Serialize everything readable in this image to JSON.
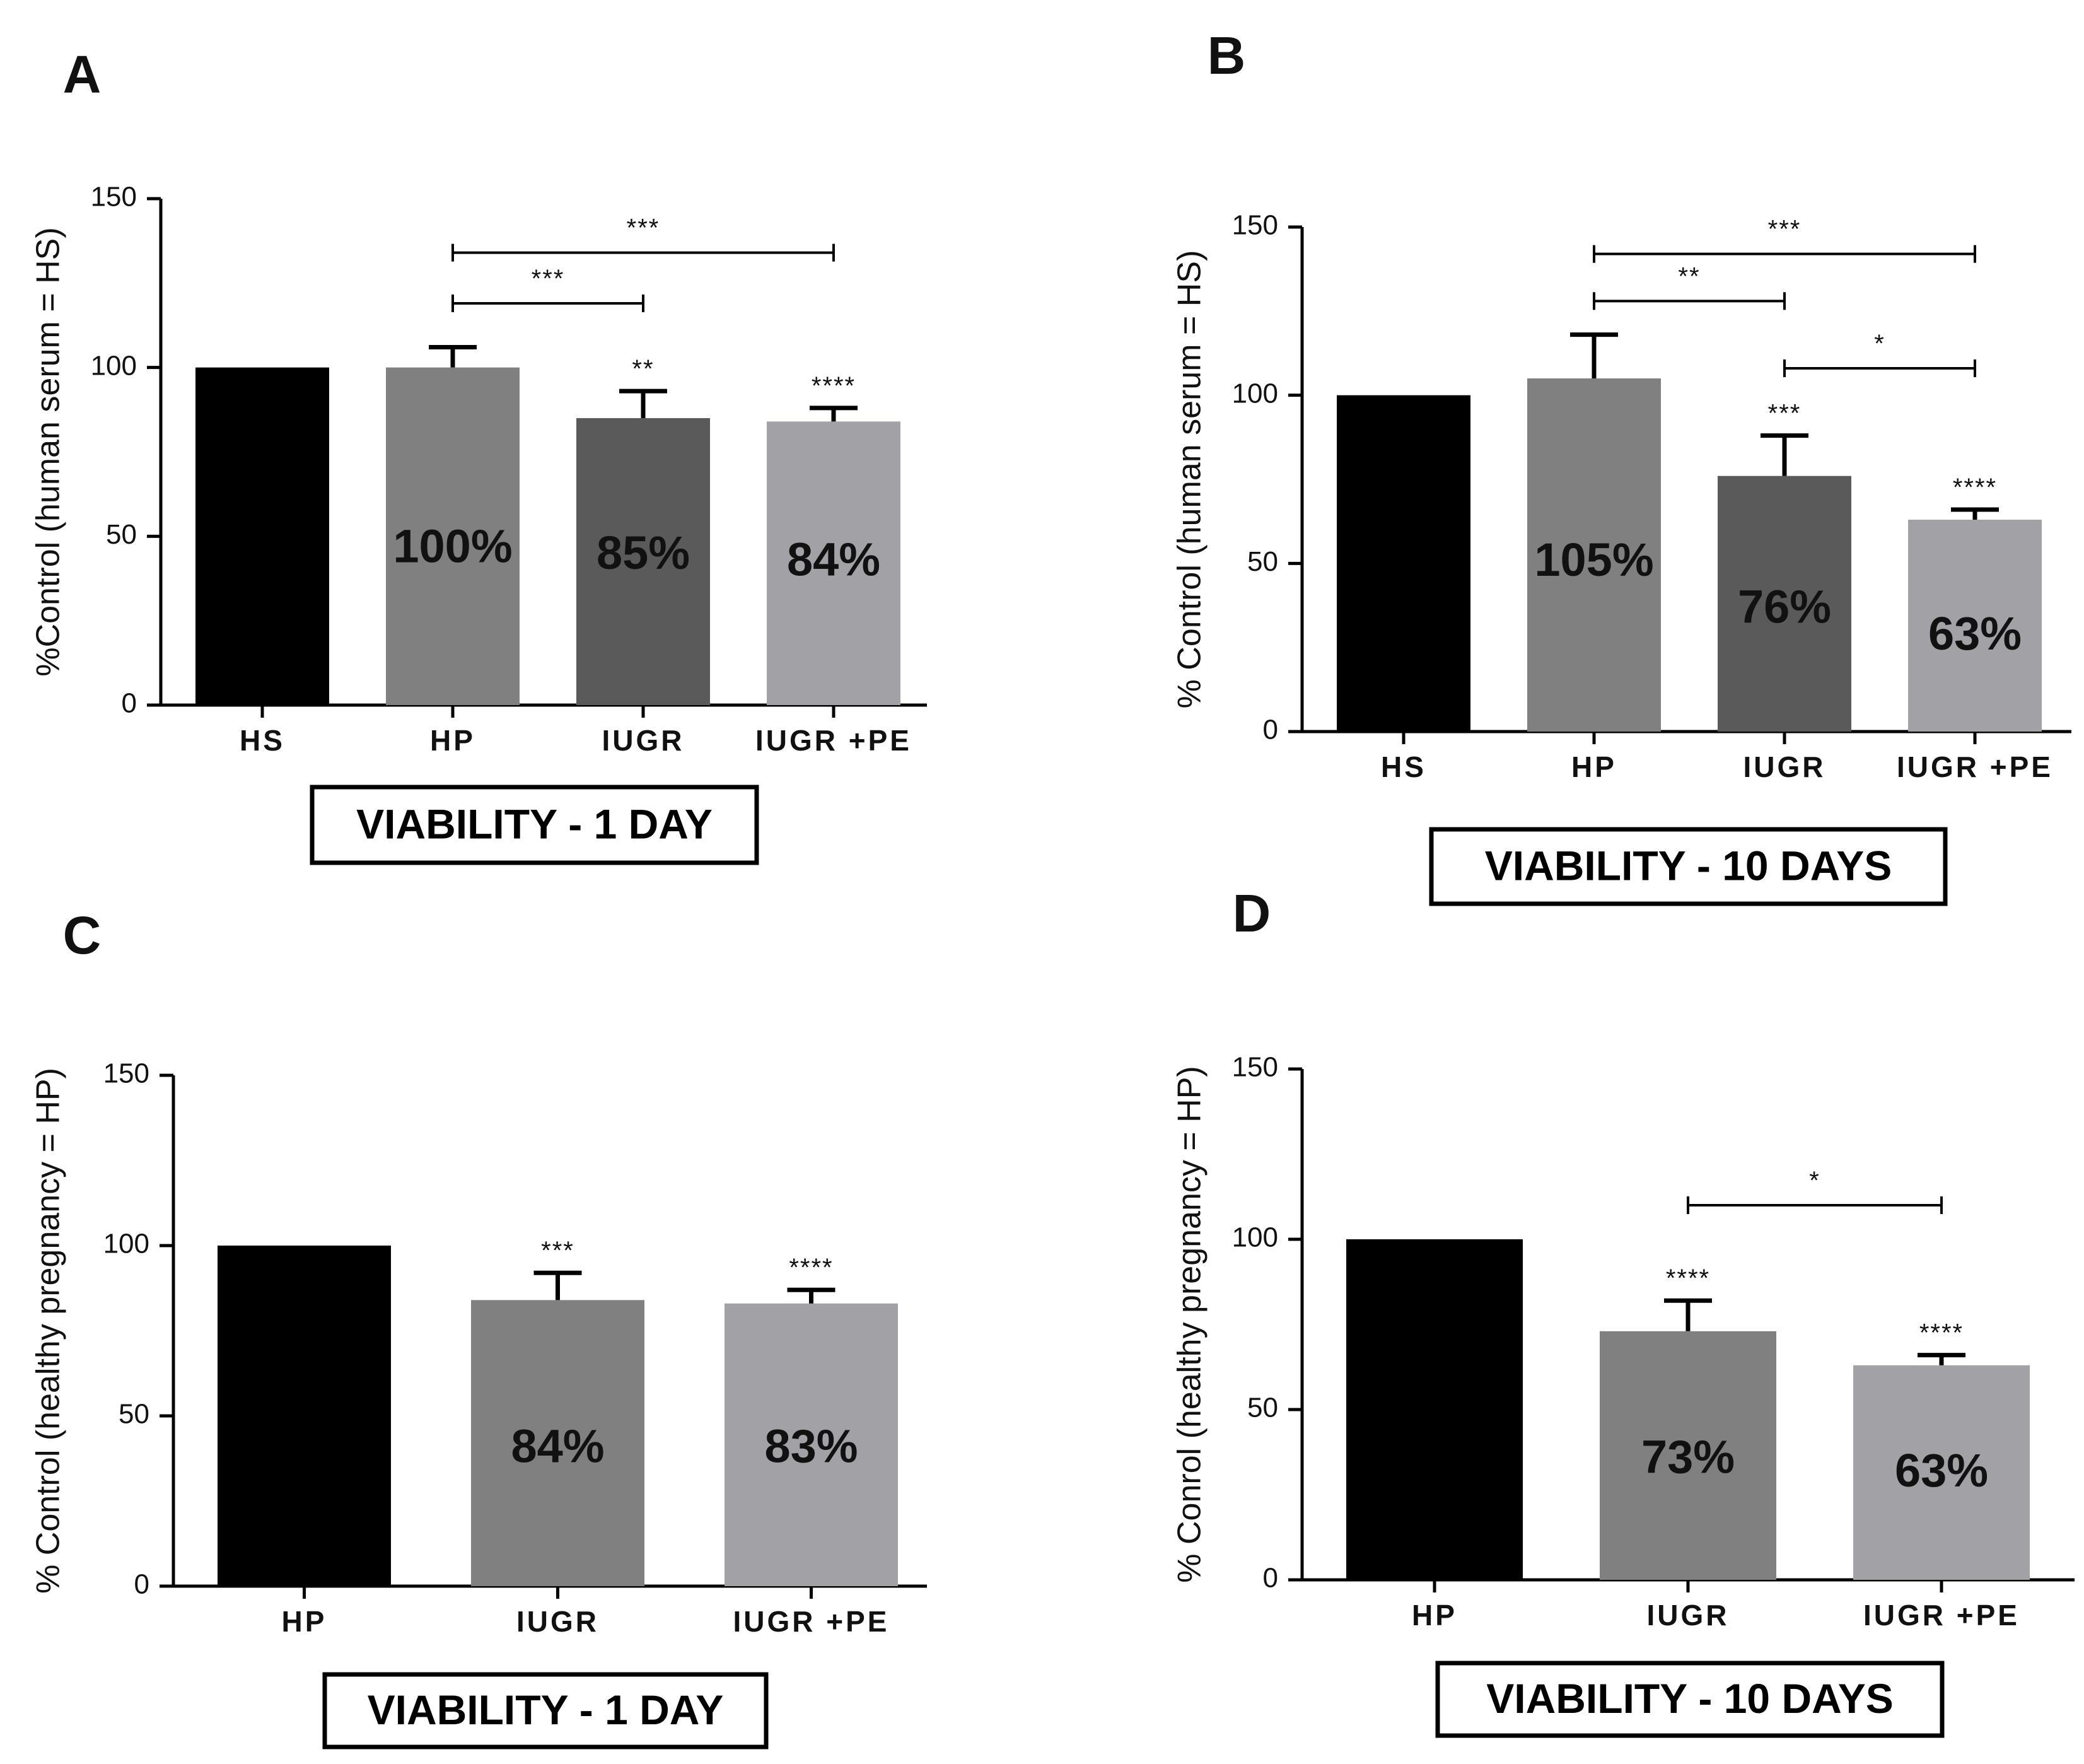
{
  "chart_data": [
    {
      "type": "bar",
      "panel": "A",
      "categories": [
        "HS",
        "HP",
        "IUGR",
        "IUGR +PE"
      ],
      "values": [
        100,
        100,
        85,
        84
      ],
      "errors": [
        0,
        6,
        8,
        4
      ],
      "bar_colors": [
        "#000000",
        "#808080",
        "#5a5a5a",
        "#a2a2a6"
      ],
      "bar_labels": [
        "",
        "100%",
        "85%",
        "84%"
      ],
      "bar_label_values": [
        null,
        46,
        44,
        42
      ],
      "bar_sig": [
        "",
        "",
        "**",
        "****"
      ],
      "ylabel": "%Control (human serum = HS)",
      "ylim": [
        0,
        150
      ],
      "yticks": [
        "0",
        "50",
        "100",
        "150"
      ],
      "title": "VIABILITY - 1 DAY",
      "brackets": [
        {
          "from": 1,
          "to": 3,
          "y": 134,
          "label": "***"
        },
        {
          "from": 1,
          "to": 2,
          "y": 119,
          "label": "***"
        }
      ]
    },
    {
      "type": "bar",
      "panel": "B",
      "categories": [
        "HS",
        "HP",
        "IUGR",
        "IUGR +PE"
      ],
      "values": [
        100,
        105,
        76,
        63
      ],
      "errors": [
        0,
        13,
        12,
        3
      ],
      "bar_colors": [
        "#000000",
        "#808080",
        "#5a5a5a",
        "#a2a2a6"
      ],
      "bar_labels": [
        "",
        "105%",
        "76%",
        "63%"
      ],
      "bar_label_values": [
        null,
        50,
        36,
        28
      ],
      "bar_sig": [
        "",
        "",
        "***",
        "****"
      ],
      "ylabel": "% Control (human serum = HS)",
      "ylim": [
        0,
        150
      ],
      "yticks": [
        "0",
        "50",
        "100",
        "150"
      ],
      "title": "VIABILITY  - 10 DAYS",
      "brackets": [
        {
          "from": 1,
          "to": 3,
          "y": 142,
          "label": "***"
        },
        {
          "from": 1,
          "to": 2,
          "y": 128,
          "label": "**"
        },
        {
          "from": 2,
          "to": 3,
          "y": 108,
          "label": "*"
        }
      ]
    },
    {
      "type": "bar",
      "panel": "C",
      "categories": [
        "HP",
        "IUGR",
        "IUGR +PE"
      ],
      "values": [
        100,
        84,
        83
      ],
      "errors": [
        0,
        8,
        4
      ],
      "bar_colors": [
        "#000000",
        "#808080",
        "#a2a2a6"
      ],
      "bar_labels": [
        "",
        "84%",
        "83%"
      ],
      "bar_label_values": [
        null,
        40,
        40
      ],
      "bar_sig": [
        "",
        "***",
        "****"
      ],
      "ylabel": "% Control (healthy pregnancy = HP)",
      "ylim": [
        0,
        150
      ],
      "yticks": [
        "0",
        "50",
        "100",
        "150"
      ],
      "title": "VIABILITY - 1 DAY",
      "brackets": []
    },
    {
      "type": "bar",
      "panel": "D",
      "categories": [
        "HP",
        "IUGR",
        "IUGR +PE"
      ],
      "values": [
        100,
        73,
        63
      ],
      "errors": [
        0,
        9,
        3
      ],
      "bar_colors": [
        "#000000",
        "#808080",
        "#a2a2a6"
      ],
      "bar_labels": [
        "",
        "73%",
        "63%"
      ],
      "bar_label_values": [
        null,
        35,
        31
      ],
      "bar_sig": [
        "",
        "****",
        "****"
      ],
      "ylabel": "% Conrol (healthy pregnancy = HP)",
      "ylim": [
        0,
        150
      ],
      "yticks": [
        "0",
        "50",
        "100",
        "150"
      ],
      "title": "VIABILITY - 10 DAYS",
      "brackets": [
        {
          "from": 1,
          "to": 2,
          "y": 110,
          "label": "*"
        }
      ]
    }
  ]
}
